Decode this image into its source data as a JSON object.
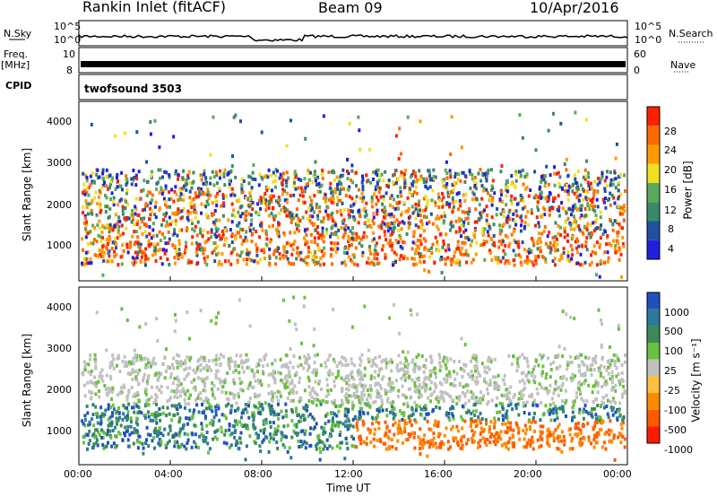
{
  "header": {
    "station": "Rankin Inlet (fitACF)",
    "beam": "Beam 09",
    "date": "10/Apr/2016"
  },
  "top_panels": {
    "nsky_label": "N.Sky",
    "nsearch_label": "N.Search",
    "freq_label_line1": "Freq.",
    "freq_label_line2": "[MHz]",
    "nave_label": "Nave",
    "cpid_label": "CPID",
    "cpid_value": "twofsound 3503",
    "noise_ticks": [
      "10^5",
      "10^0"
    ],
    "noise_right_ticks": [
      "10^5",
      "10^0"
    ],
    "freq_ticks": [
      "10",
      "8"
    ],
    "nave_ticks": [
      "60",
      "0"
    ]
  },
  "colors": {
    "power_scale": [
      "#2020e0",
      "#2050a0",
      "#3a8a6a",
      "#5aaa5a",
      "#f0e020",
      "#ff9a00",
      "#ff6a00",
      "#ff2000"
    ],
    "velocity_scale": [
      "#2050c0",
      "#2a7a9a",
      "#3a8a5a",
      "#6ac040",
      "#c0c0c0",
      "#ffc040",
      "#ff8a00",
      "#ff5a00",
      "#ff1a00"
    ]
  },
  "chart_data": [
    {
      "type": "heatmap",
      "title": "Power",
      "xlabel": "",
      "ylabel": "Slant Range [km]",
      "x_ticks": [
        "00:00",
        "04:00",
        "08:00",
        "12:00",
        "16:00",
        "20:00",
        "00:00"
      ],
      "y_ticks": [
        "4000",
        "3000",
        "2000",
        "1000"
      ],
      "ylim": [
        180,
        4500
      ],
      "colorbar_label": "Power [dB]",
      "colorbar_ticks": [
        "28",
        "24",
        "20",
        "16",
        "12",
        "8",
        "4"
      ]
    },
    {
      "type": "heatmap",
      "title": "Velocity",
      "xlabel": "Time UT",
      "ylabel": "Slant Range [km]",
      "x_ticks": [
        "00:00",
        "04:00",
        "08:00",
        "12:00",
        "16:00",
        "20:00",
        "00:00"
      ],
      "y_ticks": [
        "4000",
        "3000",
        "2000",
        "1000"
      ],
      "ylim": [
        180,
        4500
      ],
      "colorbar_label": "Velocity [m s⁻¹]",
      "colorbar_ticks": [
        "1000",
        "500",
        "100",
        "25",
        "-25",
        "-100",
        "-500",
        "-1000"
      ]
    }
  ]
}
